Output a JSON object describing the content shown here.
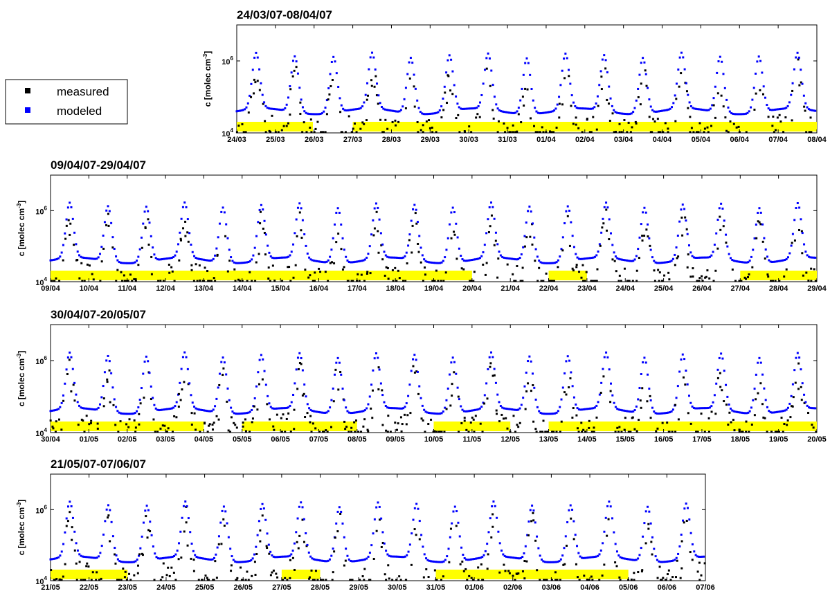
{
  "legend": {
    "items": [
      {
        "label": "measured",
        "color": "#000000"
      },
      {
        "label": "modeled",
        "color": "#0000ff"
      }
    ]
  },
  "y_axis_label": "c [molec cm",
  "y_axis_label_exp": "-3",
  "y_axis_label_end": "]",
  "highlight_color": "#ffff00",
  "chart_data": [
    {
      "type": "scatter",
      "title": "24/03/07-08/04/07",
      "ylabel": "c [molec cm-3]",
      "yscale": "log",
      "ylim": [
        10000,
        10000000
      ],
      "yticks": [
        "10^4",
        "10^6"
      ],
      "xticks": [
        "24/03",
        "25/03",
        "26/03",
        "27/03",
        "28/03",
        "29/03",
        "30/03",
        "31/03",
        "01/04",
        "02/04",
        "03/04",
        "04/04",
        "05/04",
        "06/04",
        "07/04",
        "08/04"
      ],
      "highlight_ranges": [
        [
          0.0,
          1.97
        ],
        [
          3.0,
          15.0
        ]
      ],
      "series": [
        {
          "name": "measured"
        },
        {
          "name": "modeled"
        }
      ]
    },
    {
      "type": "scatter",
      "title": "09/04/07-29/04/07",
      "ylabel": "c [molec cm-3]",
      "yscale": "log",
      "ylim": [
        10000,
        10000000
      ],
      "yticks": [
        "10^4",
        "10^6"
      ],
      "xticks": [
        "09/04",
        "10/04",
        "11/04",
        "12/04",
        "13/04",
        "14/04",
        "15/04",
        "16/04",
        "17/04",
        "18/04",
        "19/04",
        "20/04",
        "21/04",
        "22/04",
        "23/04",
        "24/04",
        "25/04",
        "26/04",
        "27/04",
        "28/04",
        "29/04"
      ],
      "highlight_ranges": [
        [
          0.0,
          11.0
        ],
        [
          13.0,
          14.0
        ],
        [
          18.0,
          20.0
        ]
      ],
      "series": [
        {
          "name": "measured"
        },
        {
          "name": "modeled"
        }
      ]
    },
    {
      "type": "scatter",
      "title": "30/04/07-20/05/07",
      "ylabel": "c [molec cm-3]",
      "yscale": "log",
      "ylim": [
        10000,
        10000000
      ],
      "yticks": [
        "10^4",
        "10^6"
      ],
      "xticks": [
        "30/04",
        "01/05",
        "02/05",
        "03/05",
        "04/05",
        "05/05",
        "06/05",
        "07/05",
        "08/05",
        "09/05",
        "10/05",
        "11/05",
        "12/05",
        "13/05",
        "14/05",
        "15/05",
        "16/05",
        "17/05",
        "18/05",
        "19/05",
        "20/05"
      ],
      "highlight_ranges": [
        [
          0.0,
          4.0
        ],
        [
          5.0,
          8.0
        ],
        [
          10.0,
          12.0
        ],
        [
          13.0,
          20.0
        ]
      ],
      "series": [
        {
          "name": "measured"
        },
        {
          "name": "modeled"
        }
      ]
    },
    {
      "type": "scatter",
      "title": "21/05/07-07/06/07",
      "ylabel": "c [molec cm-3]",
      "yscale": "log",
      "ylim": [
        10000,
        10000000
      ],
      "yticks": [
        "10^4",
        "10^6"
      ],
      "xticks": [
        "21/05",
        "22/05",
        "23/05",
        "24/05",
        "25/05",
        "26/05",
        "27/05",
        "28/05",
        "29/05",
        "30/05",
        "31/05",
        "01/06",
        "02/06",
        "03/06",
        "04/06",
        "05/06",
        "06/06",
        "07/06"
      ],
      "highlight_ranges": [
        [
          0.0,
          2.0
        ],
        [
          6.0,
          7.0
        ],
        [
          10.0,
          15.0
        ]
      ],
      "series": [
        {
          "name": "measured"
        },
        {
          "name": "modeled"
        }
      ]
    }
  ]
}
